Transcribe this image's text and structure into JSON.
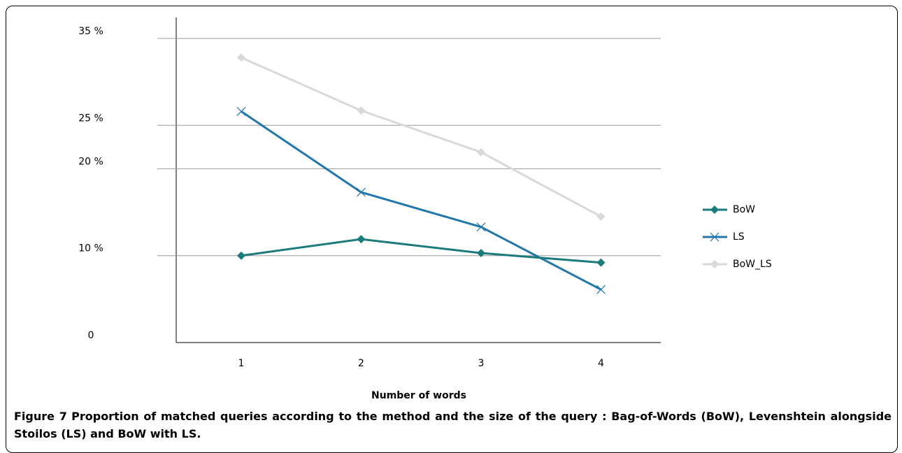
{
  "chart_data": {
    "type": "line",
    "categories": [
      "1",
      "2",
      "3",
      "4"
    ],
    "series": [
      {
        "name": "BoW",
        "color": "#1b7b7b",
        "marker": "diamond",
        "values": [
          10,
          11.9,
          10.3,
          9.2
        ]
      },
      {
        "name": "LS",
        "color": "#2277aa",
        "marker": "x",
        "values": [
          26.6,
          17.3,
          13.3,
          6.1
        ]
      },
      {
        "name": "BoW_LS",
        "color": "#d9d9d9",
        "marker": "diamond",
        "values": [
          32.8,
          26.7,
          21.9,
          14.5
        ]
      }
    ],
    "ylim": [
      0,
      35
    ],
    "yticks": [
      0,
      {
        "value": 10,
        "label": "10 %"
      },
      {
        "value": 20,
        "label": "20 %"
      },
      {
        "value": 25,
        "label": "25 %"
      },
      {
        "value": 35,
        "label": "35 %"
      }
    ],
    "grid": true,
    "legend": "right",
    "xlabel": "Number of words"
  },
  "caption": {
    "label": "Figure 7",
    "text": "Proportion of matched queries according to the method and the size of the query : Bag-of-Words (BoW), Levenshtein alongside Stoilos (LS) and BoW with LS."
  }
}
